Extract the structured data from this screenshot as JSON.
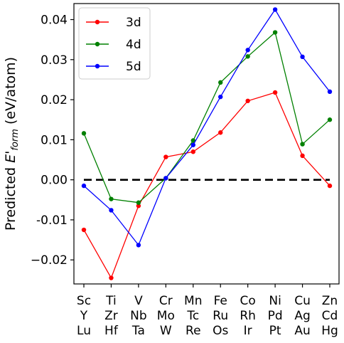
{
  "chart_data": {
    "type": "line",
    "ylabel_prefix": "Predicted ",
    "ylabel_symbol": "E'",
    "ylabel_subscript": "form",
    "ylabel_suffix": " (eV/atom)",
    "ylim": [
      -0.026,
      0.044
    ],
    "yticks": [
      {
        "value": 0.04,
        "label": "0.04"
      },
      {
        "value": 0.03,
        "label": "0.03"
      },
      {
        "value": 0.02,
        "label": "0.02"
      },
      {
        "value": 0.01,
        "label": "0.01"
      },
      {
        "value": 0.0,
        "label": "0.00"
      },
      {
        "value": -0.01,
        "label": "-0.01"
      },
      {
        "value": -0.02,
        "label": "−0.02"
      }
    ],
    "categories": [
      [
        "Sc",
        "Y",
        "Lu"
      ],
      [
        "Ti",
        "Zr",
        "Hf"
      ],
      [
        "V",
        "Nb",
        "Ta"
      ],
      [
        "Cr",
        "Mo",
        "W"
      ],
      [
        "Mn",
        "Tc",
        "Re"
      ],
      [
        "Fe",
        "Ru",
        "Os"
      ],
      [
        "Co",
        "Rh",
        "Ir"
      ],
      [
        "Ni",
        "Pd",
        "Pt"
      ],
      [
        "Cu",
        "Ag",
        "Au"
      ],
      [
        "Zn",
        "Cd",
        "Hg"
      ]
    ],
    "reference_line": {
      "y": 0.0,
      "style": "dashed",
      "color": "#000000"
    },
    "series": [
      {
        "name": "3d",
        "color": "#ff0000",
        "values": [
          -0.0125,
          -0.0245,
          -0.0065,
          0.0057,
          0.007,
          0.0118,
          0.0197,
          0.0218,
          0.006,
          -0.0015
        ]
      },
      {
        "name": "4d",
        "color": "#008000",
        "values": [
          0.0116,
          -0.0048,
          -0.0057,
          0.0004,
          0.0098,
          0.0243,
          0.0308,
          0.0368,
          0.0089,
          0.015
        ]
      },
      {
        "name": "5d",
        "color": "#0000ff",
        "values": [
          -0.0015,
          -0.0076,
          -0.0163,
          0.0004,
          0.0087,
          0.0207,
          0.0324,
          0.0425,
          0.0307,
          0.022
        ]
      }
    ],
    "legend_position": "top-left",
    "grid": false
  }
}
